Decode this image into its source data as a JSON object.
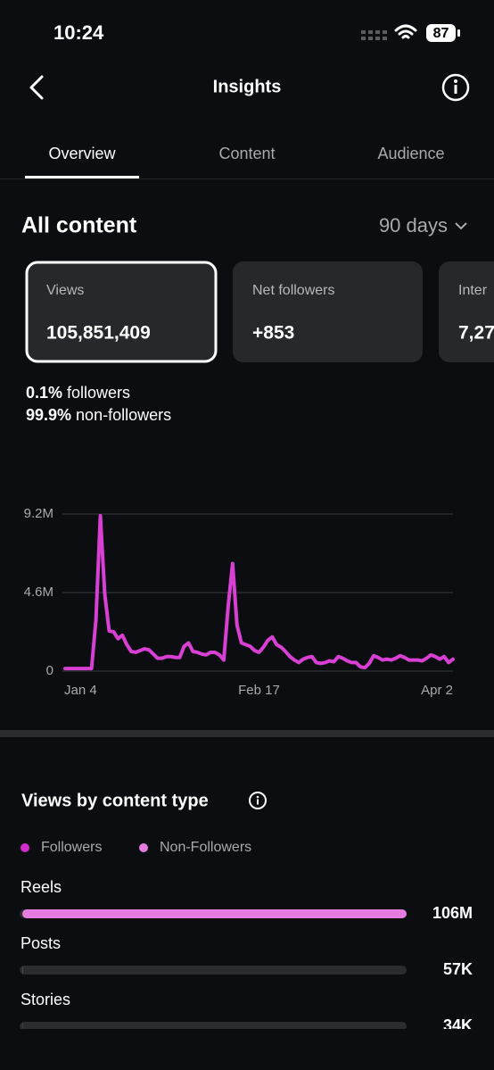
{
  "status_bar": {
    "time": "10:24",
    "battery": "87"
  },
  "header": {
    "title": "Insights"
  },
  "tabs": [
    "Overview",
    "Content",
    "Audience"
  ],
  "section": {
    "title": "All content",
    "range": "90 days"
  },
  "cards": [
    {
      "label": "Views",
      "value": "105,851,409"
    },
    {
      "label": "Net followers",
      "value": "+853"
    },
    {
      "label": "Inter",
      "value": "7,27"
    }
  ],
  "breakdown": [
    {
      "percent": "0.1%",
      "label": "followers"
    },
    {
      "percent": "99.9%",
      "label": "non-followers"
    }
  ],
  "chart_data": [
    {
      "type": "line",
      "categories": [
        "Jan 4",
        null,
        null,
        null,
        null,
        null,
        null,
        null,
        null,
        null,
        null,
        null,
        null,
        null,
        null,
        null,
        null,
        null,
        null,
        null,
        null,
        null,
        null,
        null,
        null,
        null,
        null,
        null,
        null,
        null,
        null,
        null,
        null,
        null,
        null,
        null,
        null,
        null,
        null,
        null,
        null,
        null,
        null,
        null,
        "Feb 17",
        null,
        null,
        null,
        null,
        null,
        null,
        null,
        null,
        null,
        null,
        null,
        null,
        null,
        null,
        null,
        null,
        null,
        null,
        null,
        null,
        null,
        null,
        null,
        null,
        null,
        null,
        null,
        null,
        null,
        null,
        null,
        null,
        null,
        null,
        null,
        null,
        null,
        null,
        null,
        null,
        null,
        null,
        null,
        "Apr 2"
      ],
      "values": [
        150000,
        150000,
        150000,
        150000,
        150000,
        150000,
        150000,
        3000000,
        9100000,
        4500000,
        2350000,
        2300000,
        1900000,
        2100000,
        1550000,
        1150000,
        1100000,
        1200000,
        1300000,
        1250000,
        1000000,
        750000,
        750000,
        850000,
        850000,
        800000,
        800000,
        1450000,
        1650000,
        1150000,
        1100000,
        1000000,
        950000,
        1100000,
        1100000,
        950000,
        650000,
        3800000,
        6300000,
        2700000,
        1650000,
        1550000,
        1450000,
        1200000,
        1100000,
        1400000,
        1800000,
        2000000,
        1550000,
        1400000,
        1150000,
        850000,
        650000,
        500000,
        700000,
        800000,
        850000,
        500000,
        450000,
        500000,
        600000,
        550000,
        850000,
        750000,
        600000,
        500000,
        500000,
        250000,
        200000,
        450000,
        900000,
        800000,
        650000,
        700000,
        650000,
        750000,
        900000,
        800000,
        650000,
        650000,
        650000,
        600000,
        750000,
        950000,
        850000,
        700000,
        850000,
        500000,
        700000
      ],
      "color": "#d83fd3",
      "ylim": [
        0,
        9200000
      ],
      "yticks": [
        0,
        {
          "value": 4600000,
          "label": "4.6M"
        },
        {
          "value": 9200000,
          "label": "9.2M"
        }
      ],
      "grid": true
    },
    {
      "type": "bar",
      "title": "Views by content type",
      "legend": [
        {
          "name": "Followers",
          "color": "#d32ccd"
        },
        {
          "name": "Non-Followers",
          "color": "#e57de0"
        }
      ],
      "categories": [
        "Reels",
        "Posts",
        "Stories"
      ],
      "values": [
        106000000,
        57000,
        34000
      ],
      "value_labels": [
        "106M",
        "57K",
        "34K"
      ],
      "color": "#e57de0",
      "xlim": [
        0,
        106000000
      ]
    }
  ]
}
